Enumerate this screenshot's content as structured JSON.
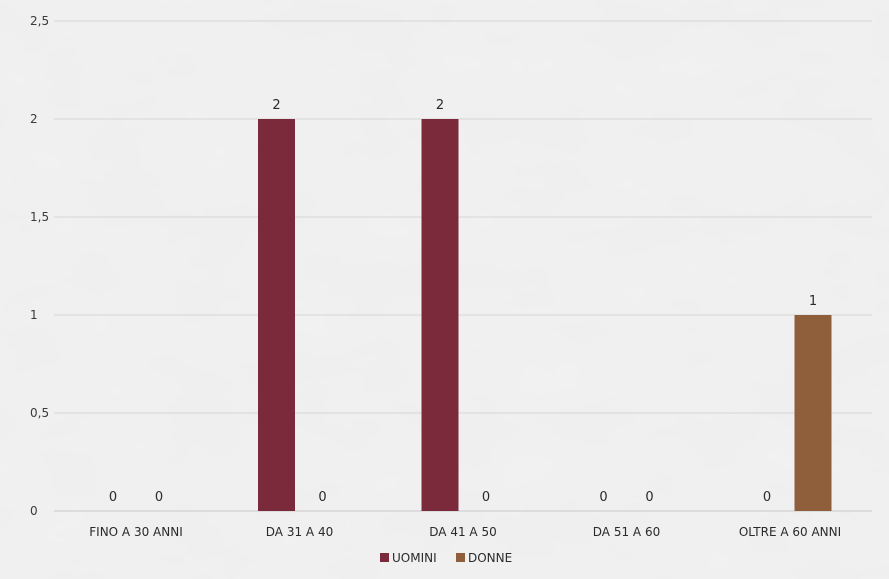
{
  "chart_data": {
    "type": "bar",
    "title": "",
    "xlabel": "",
    "ylabel": "",
    "categories": [
      "FINO A 30 ANNI",
      "DA 31 A 40",
      "DA 41 A 50",
      "DA 51 A 60",
      "OLTRE A 60 ANNI"
    ],
    "series": [
      {
        "name": "UOMINI",
        "color": "#7b2a3b",
        "values": [
          0,
          2,
          2,
          0,
          0
        ]
      },
      {
        "name": "DONNE",
        "color": "#8f5f3c",
        "values": [
          0,
          0,
          0,
          0,
          1
        ]
      }
    ],
    "ylim": [
      0,
      2.5
    ],
    "yticks": [
      "0",
      "0,5",
      "1",
      "1,5",
      "2",
      "2,5"
    ],
    "ytick_values": [
      0,
      0.5,
      1,
      1.5,
      2,
      2.5
    ],
    "grid": true,
    "legend": "bottom",
    "data_labels": true
  }
}
